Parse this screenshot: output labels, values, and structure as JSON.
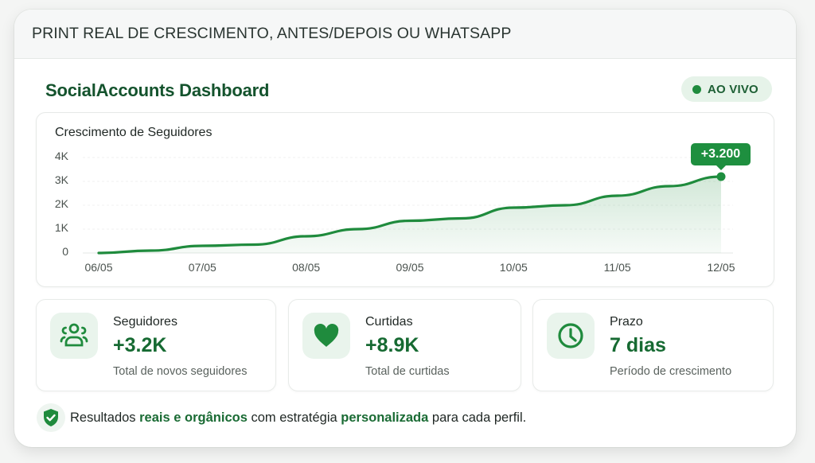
{
  "header": {
    "title": "PRINT REAL DE CRESCIMENTO, ANTES/DEPOIS OU WHATSAPP"
  },
  "dashboard": {
    "title": "SocialAccounts Dashboard",
    "live_badge": {
      "label": "AO VIVO",
      "color": "#1f8b3d"
    }
  },
  "chart_data": {
    "type": "area",
    "title": "Crescimento de Seguidores",
    "xlabel": "",
    "ylabel": "",
    "categories": [
      "06/05",
      "07/05",
      "08/05",
      "09/05",
      "10/05",
      "11/05",
      "12/05"
    ],
    "y_tick_labels": [
      "4K",
      "3K",
      "2K",
      "1K",
      "0"
    ],
    "ylim": [
      0,
      4000
    ],
    "grid": true,
    "series": [
      {
        "name": "Seguidores",
        "color": "#1f8b3d",
        "x": [
          0,
          0.5,
          1,
          1.5,
          2,
          2.5,
          3,
          3.5,
          4,
          4.5,
          5,
          5.5,
          6
        ],
        "values": [
          0,
          100,
          300,
          350,
          700,
          1000,
          1350,
          1450,
          1900,
          2000,
          2400,
          2800,
          3200
        ]
      }
    ],
    "annotation": {
      "label": "+3.200",
      "x": "12/05",
      "value": 3200
    }
  },
  "stats": [
    {
      "icon": "users-icon",
      "label": "Seguidores",
      "value": "+3.2K",
      "sub": "Total de novos seguidores"
    },
    {
      "icon": "heart-icon",
      "label": "Curtidas",
      "value": "+8.9K",
      "sub": "Total de curtidas"
    },
    {
      "icon": "clock-icon",
      "label": "Prazo",
      "value": "7 dias",
      "sub": "Período de crescimento"
    }
  ],
  "footer": {
    "part1": "Resultados ",
    "highlight1": "reais e orgânicos",
    "part2": " com estratégia ",
    "highlight2": "personalizada",
    "part3": " para cada perfil."
  },
  "colors": {
    "accent": "#1f8b3d",
    "title_green": "#14532d",
    "value_green": "#166a32",
    "icon_bg": "#e9f4ec"
  }
}
